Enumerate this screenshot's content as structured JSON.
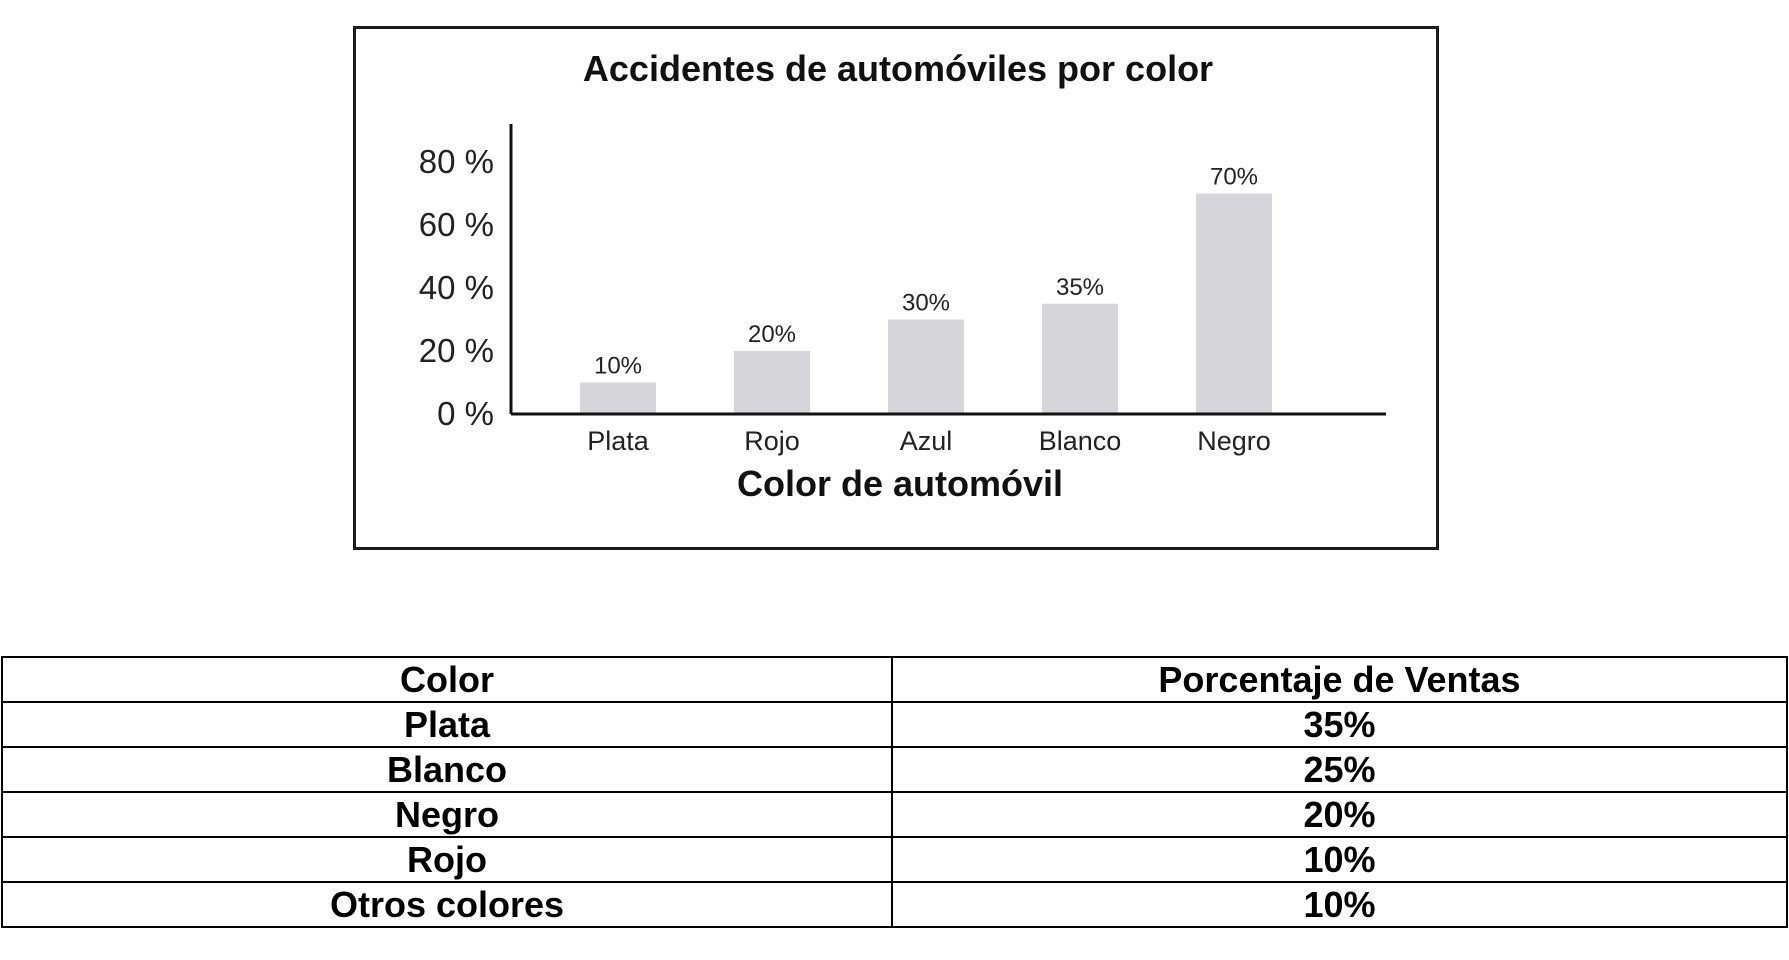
{
  "chart_data": {
    "type": "bar",
    "title": "Accidentes de automóviles por color",
    "xlabel": "Color de automóvil",
    "ylabel": "",
    "categories": [
      "Plata",
      "Rojo",
      "Azul",
      "Blanco",
      "Negro"
    ],
    "values": [
      10,
      20,
      30,
      35,
      70
    ],
    "value_labels": [
      "10%",
      "20%",
      "30%",
      "35%",
      "70%"
    ],
    "y_ticks": [
      0,
      20,
      40,
      60,
      80
    ],
    "y_tick_labels": [
      "0 %",
      "20 %",
      "40 %",
      "60 %",
      "80 %"
    ],
    "ylim": [
      0,
      80
    ],
    "grid": false,
    "bar_color": "#d4d6dc"
  },
  "table": {
    "headers": [
      "Color",
      "Porcentaje de Ventas"
    ],
    "rows": [
      [
        "Plata",
        "35%"
      ],
      [
        "Blanco",
        "25%"
      ],
      [
        "Negro",
        "20%"
      ],
      [
        "Rojo",
        "10%"
      ],
      [
        "Otros colores",
        "10%"
      ]
    ]
  }
}
